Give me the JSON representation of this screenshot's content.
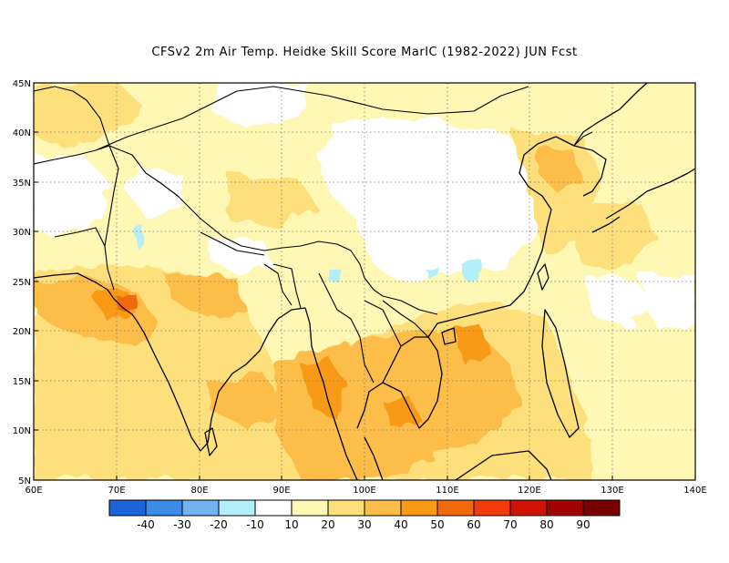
{
  "title": "CFSv2  2m Air Temp. Heidke Skill Score MarIC (1982-2022) JUN Fcst",
  "map": {
    "lon_range": [
      60,
      140
    ],
    "lat_range": [
      5,
      45
    ],
    "lon_labels": [
      "60E",
      "70E",
      "80E",
      "90E",
      "100E",
      "110E",
      "120E",
      "130E",
      "140E"
    ],
    "lat_labels": [
      "5N",
      "10N",
      "15N",
      "20N",
      "25N",
      "30N",
      "35N",
      "40N",
      "45N"
    ],
    "grid": "dotted"
  },
  "colorbar": {
    "colors": [
      "#1d63d9",
      "#3d8be8",
      "#73b2f2",
      "#b2effa",
      "#ffffff",
      "#fef8b4",
      "#fde07c",
      "#fcbe4a",
      "#f89a16",
      "#f06a0c",
      "#f03c0a",
      "#cd1206",
      "#a00303",
      "#780000"
    ],
    "labels": [
      "-40",
      "-30",
      "-20",
      "-10",
      "10",
      "20",
      "30",
      "40",
      "50",
      "60",
      "70",
      "80",
      "90"
    ]
  }
}
